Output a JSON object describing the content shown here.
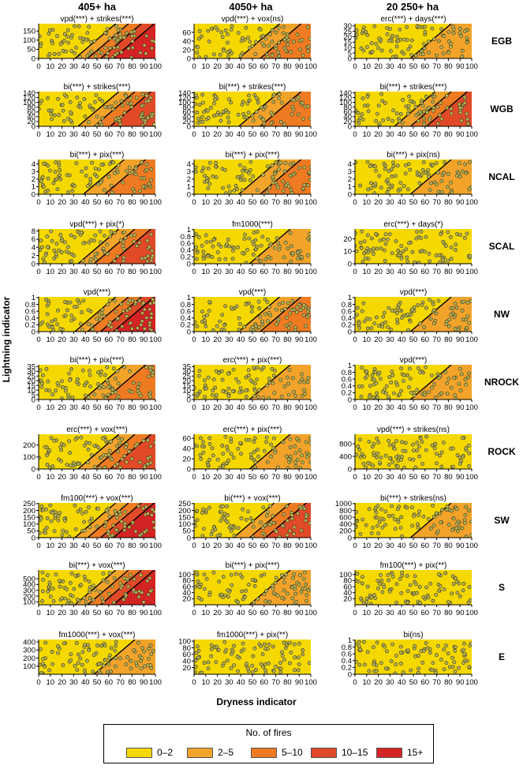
{
  "figure": {
    "column_titles": [
      "405+ ha",
      "4050+ ha",
      "20 250+ ha"
    ],
    "row_labels": [
      "EGB",
      "WGB",
      "NCAL",
      "SCAL",
      "NW",
      "NROCK",
      "ROCK",
      "SW",
      "S",
      "E"
    ],
    "xlabel": "Dryness indicator",
    "ylabel": "Lightning indicator"
  },
  "legend": {
    "title": "No. of fires",
    "items": [
      {
        "label": "0–2",
        "color": "#f5d800"
      },
      {
        "label": "2–5",
        "color": "#f2a329"
      },
      {
        "label": "5–10",
        "color": "#ee7b22"
      },
      {
        "label": "10–15",
        "color": "#e04a27"
      },
      {
        "label": "15+",
        "color": "#d42323"
      }
    ]
  },
  "chart_data": [
    {
      "type": "scatter",
      "row": "EGB",
      "column": "405+ ha",
      "title": "vpd(***) + strikes(***)",
      "xlim": [
        0,
        100
      ],
      "ylim": [
        0,
        190
      ],
      "yticks": [
        0,
        50,
        100,
        150
      ],
      "xticks": [
        0,
        10,
        20,
        30,
        40,
        50,
        60,
        70,
        80,
        90,
        100
      ],
      "max_class": "15+"
    },
    {
      "type": "scatter",
      "row": "EGB",
      "column": "4050+ ha",
      "title": "vpd(***) + vox(ns)",
      "xlim": [
        0,
        100
      ],
      "ylim": [
        0,
        80
      ],
      "yticks": [
        0,
        20,
        40,
        60
      ],
      "xticks": [
        0,
        10,
        20,
        30,
        40,
        50,
        60,
        70,
        80,
        90,
        100
      ],
      "max_class": "5–10"
    },
    {
      "type": "scatter",
      "row": "EGB",
      "column": "20 250+ ha",
      "title": "erc(***) + days(***)",
      "xlim": [
        0,
        100
      ],
      "ylim": [
        0,
        32
      ],
      "yticks": [
        0,
        5,
        10,
        15,
        20,
        25,
        30
      ],
      "xticks": [
        0,
        10,
        20,
        30,
        40,
        50,
        60,
        70,
        80,
        90,
        100
      ],
      "max_class": "2–5"
    },
    {
      "type": "scatter",
      "row": "WGB",
      "column": "405+ ha",
      "title": "bi(***) + strikes(***)",
      "xlim": [
        0,
        100
      ],
      "ylim": [
        0,
        145
      ],
      "yticks": [
        0,
        20,
        40,
        60,
        80,
        100,
        120,
        140
      ],
      "xticks": [
        0,
        10,
        20,
        30,
        40,
        50,
        60,
        70,
        80,
        90,
        100
      ],
      "max_class": "10–15"
    },
    {
      "type": "scatter",
      "row": "WGB",
      "column": "4050+ ha",
      "title": "bi(***) + strikes(***)",
      "xlim": [
        0,
        100
      ],
      "ylim": [
        0,
        145
      ],
      "yticks": [
        0,
        20,
        40,
        60,
        80,
        100,
        120,
        140
      ],
      "xticks": [
        0,
        10,
        20,
        30,
        40,
        50,
        60,
        70,
        80,
        90,
        100
      ],
      "max_class": "5–10"
    },
    {
      "type": "scatter",
      "row": "WGB",
      "column": "20 250+ ha",
      "title": "bi(***) + strikes(***)",
      "xlim": [
        0,
        100
      ],
      "ylim": [
        0,
        145
      ],
      "yticks": [
        0,
        20,
        40,
        60,
        80,
        100,
        120,
        140
      ],
      "xticks": [
        0,
        10,
        20,
        30,
        40,
        50,
        60,
        70,
        80,
        90,
        100
      ],
      "max_class": "10–15"
    },
    {
      "type": "scatter",
      "row": "NCAL",
      "column": "405+ ha",
      "title": "bi(***) + pix(***)",
      "xlim": [
        0,
        100
      ],
      "ylim": [
        0,
        4.6
      ],
      "yticks": [
        0,
        1,
        2,
        3,
        4
      ],
      "xticks": [
        0,
        10,
        20,
        30,
        40,
        50,
        60,
        70,
        80,
        90,
        100
      ],
      "max_class": "5–10"
    },
    {
      "type": "scatter",
      "row": "NCAL",
      "column": "4050+ ha",
      "title": "bi(***) + pix(***)",
      "xlim": [
        0,
        100
      ],
      "ylim": [
        0,
        4.6
      ],
      "yticks": [
        0,
        1,
        2,
        3,
        4
      ],
      "xticks": [
        0,
        10,
        20,
        30,
        40,
        50,
        60,
        70,
        80,
        90,
        100
      ],
      "max_class": "5–10"
    },
    {
      "type": "scatter",
      "row": "NCAL",
      "column": "20 250+ ha",
      "title": "bi(***) + pix(ns)",
      "xlim": [
        0,
        100
      ],
      "ylim": [
        0,
        4.6
      ],
      "yticks": [
        0,
        1,
        2,
        3,
        4
      ],
      "xticks": [
        0,
        10,
        20,
        30,
        40,
        50,
        60,
        70,
        80,
        90,
        100
      ],
      "max_class": "2–5"
    },
    {
      "type": "scatter",
      "row": "SCAL",
      "column": "405+ ha",
      "title": "vpd(***) + pix(*)",
      "xlim": [
        0,
        100
      ],
      "ylim": [
        0,
        8.5
      ],
      "yticks": [
        0,
        2,
        4,
        6,
        8
      ],
      "xticks": [
        0,
        10,
        20,
        30,
        40,
        50,
        60,
        70,
        80,
        90,
        100
      ],
      "max_class": "10–15"
    },
    {
      "type": "scatter",
      "row": "SCAL",
      "column": "4050+ ha",
      "title": "fm1000(***)",
      "xlim": [
        0,
        100
      ],
      "ylim": [
        0,
        1.02
      ],
      "yticks": [
        0,
        0.2,
        0.4,
        0.6,
        0.8,
        1.0
      ],
      "xticks": [
        0,
        10,
        20,
        30,
        40,
        50,
        60,
        70,
        80,
        90,
        100
      ],
      "max_class": "2–5"
    },
    {
      "type": "scatter",
      "row": "SCAL",
      "column": "20 250+ ha",
      "title": "erc(***) + days(*)",
      "xlim": [
        0,
        100
      ],
      "ylim": [
        0,
        28
      ],
      "yticks": [
        0,
        10,
        20
      ],
      "xticks": [
        0,
        10,
        20,
        30,
        40,
        50,
        60,
        70,
        80,
        90,
        100
      ],
      "max_class": "0–2"
    },
    {
      "type": "scatter",
      "row": "NW",
      "column": "405+ ha",
      "title": "vpd(***)",
      "xlim": [
        0,
        100
      ],
      "ylim": [
        0,
        1.02
      ],
      "yticks": [
        0,
        0.2,
        0.4,
        0.6,
        0.8,
        1.0
      ],
      "xticks": [
        0,
        10,
        20,
        30,
        40,
        50,
        60,
        70,
        80,
        90,
        100
      ],
      "max_class": "15+"
    },
    {
      "type": "scatter",
      "row": "NW",
      "column": "4050+ ha",
      "title": "vpd(***)",
      "xlim": [
        0,
        100
      ],
      "ylim": [
        0,
        1.02
      ],
      "yticks": [
        0,
        0.2,
        0.4,
        0.6,
        0.8,
        1.0
      ],
      "xticks": [
        0,
        10,
        20,
        30,
        40,
        50,
        60,
        70,
        80,
        90,
        100
      ],
      "max_class": "5–10"
    },
    {
      "type": "scatter",
      "row": "NW",
      "column": "20 250+ ha",
      "title": "vpd(***)",
      "xlim": [
        0,
        100
      ],
      "ylim": [
        0,
        1.02
      ],
      "yticks": [
        0,
        0.2,
        0.4,
        0.6,
        0.8,
        1.0
      ],
      "xticks": [
        0,
        10,
        20,
        30,
        40,
        50,
        60,
        70,
        80,
        90,
        100
      ],
      "max_class": "2–5"
    },
    {
      "type": "scatter",
      "row": "NROCK",
      "column": "405+ ha",
      "title": "bi(***) + pix(***)",
      "xlim": [
        0,
        100
      ],
      "ylim": [
        0,
        37
      ],
      "yticks": [
        0,
        5,
        10,
        15,
        20,
        25,
        30,
        35
      ],
      "xticks": [
        0,
        10,
        20,
        30,
        40,
        50,
        60,
        70,
        80,
        90,
        100
      ],
      "max_class": "5–10"
    },
    {
      "type": "scatter",
      "row": "NROCK",
      "column": "4050+ ha",
      "title": "erc(***) + pix(***)",
      "xlim": [
        0,
        100
      ],
      "ylim": [
        0,
        37
      ],
      "yticks": [
        0,
        5,
        10,
        15,
        20,
        25,
        30,
        35
      ],
      "xticks": [
        0,
        10,
        20,
        30,
        40,
        50,
        60,
        70,
        80,
        90,
        100
      ],
      "max_class": "2–5"
    },
    {
      "type": "scatter",
      "row": "NROCK",
      "column": "20 250+ ha",
      "title": "vpd(***)",
      "xlim": [
        0,
        100
      ],
      "ylim": [
        0,
        1.02
      ],
      "yticks": [
        0,
        0.2,
        0.4,
        0.6,
        0.8,
        1.0
      ],
      "xticks": [
        0,
        10,
        20,
        30,
        40,
        50,
        60,
        70,
        80,
        90,
        100
      ],
      "max_class": "2–5"
    },
    {
      "type": "scatter",
      "row": "ROCK",
      "column": "405+ ha",
      "title": "erc(***) + vox(***)",
      "xlim": [
        0,
        100
      ],
      "ylim": [
        0,
        290
      ],
      "yticks": [
        0,
        100,
        200
      ],
      "xticks": [
        0,
        10,
        20,
        30,
        40,
        50,
        60,
        70,
        80,
        90,
        100
      ],
      "max_class": "10–15"
    },
    {
      "type": "scatter",
      "row": "ROCK",
      "column": "4050+ ha",
      "title": "erc(***) + pix(***)",
      "xlim": [
        0,
        100
      ],
      "ylim": [
        0,
        68
      ],
      "yticks": [
        0,
        20,
        40,
        60
      ],
      "xticks": [
        0,
        10,
        20,
        30,
        40,
        50,
        60,
        70,
        80,
        90,
        100
      ],
      "max_class": "2–5"
    },
    {
      "type": "scatter",
      "row": "ROCK",
      "column": "20 250+ ha",
      "title": "vpd(***) + strikes(ns)",
      "xlim": [
        0,
        100
      ],
      "ylim": [
        0,
        1100
      ],
      "yticks": [
        0,
        400,
        800
      ],
      "xticks": [
        0,
        10,
        20,
        30,
        40,
        50,
        60,
        70,
        80,
        90,
        100
      ],
      "max_class": "0–2"
    },
    {
      "type": "scatter",
      "row": "SW",
      "column": "405+ ha",
      "title": "fm100(***) + vox(***)",
      "xlim": [
        0,
        100
      ],
      "ylim": [
        0,
        255
      ],
      "yticks": [
        0,
        50,
        100,
        150,
        200,
        250
      ],
      "xticks": [
        0,
        10,
        20,
        30,
        40,
        50,
        60,
        70,
        80,
        90,
        100
      ],
      "max_class": "15+"
    },
    {
      "type": "scatter",
      "row": "SW",
      "column": "4050+ ha",
      "title": "bi(***) + vox(***)",
      "xlim": [
        0,
        100
      ],
      "ylim": [
        0,
        255
      ],
      "yticks": [
        0,
        50,
        100,
        150,
        200,
        250
      ],
      "xticks": [
        0,
        10,
        20,
        30,
        40,
        50,
        60,
        70,
        80,
        90,
        100
      ],
      "max_class": "10–15"
    },
    {
      "type": "scatter",
      "row": "SW",
      "column": "20 250+ ha",
      "title": "bi(***) + strikes(ns)",
      "xlim": [
        0,
        100
      ],
      "ylim": [
        0,
        1020
      ],
      "yticks": [
        0,
        200,
        400,
        600,
        800,
        1000
      ],
      "xticks": [
        0,
        10,
        20,
        30,
        40,
        50,
        60,
        70,
        80,
        90,
        100
      ],
      "max_class": "2–5"
    },
    {
      "type": "scatter",
      "row": "S",
      "column": "405+ ha",
      "title": "bi(***) + vox(***)",
      "xlim": [
        0,
        100
      ],
      "ylim": [
        50,
        650
      ],
      "yticks": [
        100,
        200,
        300,
        400,
        500
      ],
      "xticks": [
        0,
        10,
        20,
        30,
        40,
        50,
        60,
        70,
        80,
        90,
        100
      ],
      "max_class": "15+"
    },
    {
      "type": "scatter",
      "row": "S",
      "column": "4050+ ha",
      "title": "bi(***) + pix(***)",
      "xlim": [
        0,
        100
      ],
      "ylim": [
        0,
        115
      ],
      "yticks": [
        20,
        40,
        60,
        80,
        100
      ],
      "xticks": [
        0,
        10,
        20,
        30,
        40,
        50,
        60,
        70,
        80,
        90,
        100
      ],
      "max_class": "2–5"
    },
    {
      "type": "scatter",
      "row": "S",
      "column": "20 250+ ha",
      "title": "fm100(***) + pix(**)",
      "xlim": [
        0,
        100
      ],
      "ylim": [
        0,
        115
      ],
      "yticks": [
        20,
        40,
        60,
        80,
        100
      ],
      "xticks": [
        0,
        10,
        20,
        30,
        40,
        50,
        60,
        70,
        80,
        90,
        100
      ],
      "max_class": "0–2"
    },
    {
      "type": "scatter",
      "row": "E",
      "column": "405+ ha",
      "title": "fm1000(***) + vox(***)",
      "xlim": [
        0,
        100
      ],
      "ylim": [
        0,
        430
      ],
      "yticks": [
        100,
        200,
        300,
        400
      ],
      "xticks": [
        0,
        10,
        20,
        30,
        40,
        50,
        60,
        70,
        80,
        90,
        100
      ],
      "max_class": "2–5"
    },
    {
      "type": "scatter",
      "row": "E",
      "column": "4050+ ha",
      "title": "fm1000(***) + pix(**)",
      "xlim": [
        0,
        100
      ],
      "ylim": [
        0,
        105
      ],
      "yticks": [
        20,
        40,
        60,
        80,
        100
      ],
      "xticks": [
        0,
        10,
        20,
        30,
        40,
        50,
        60,
        70,
        80,
        90,
        100
      ],
      "max_class": "0–2"
    },
    {
      "type": "scatter",
      "row": "E",
      "column": "20 250+ ha",
      "title": "bi(ns)",
      "xlim": [
        0,
        100
      ],
      "ylim": [
        0,
        1.02
      ],
      "yticks": [
        0,
        0.2,
        0.4,
        0.6,
        0.8,
        1.0
      ],
      "xticks": [
        0,
        10,
        20,
        30,
        40,
        50,
        60,
        70,
        80,
        90,
        100
      ],
      "max_class": "0–2"
    }
  ]
}
